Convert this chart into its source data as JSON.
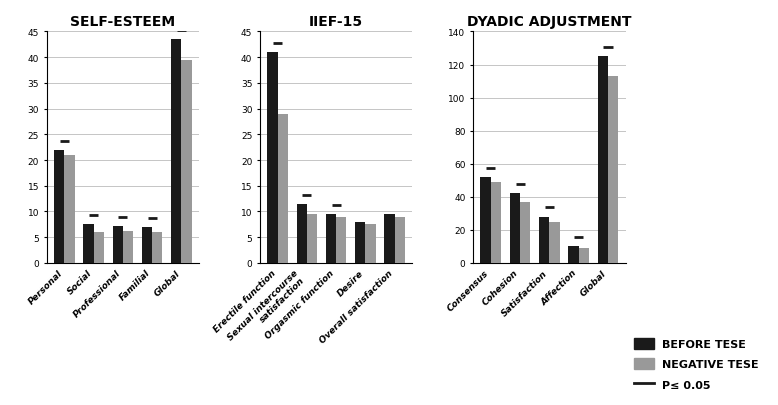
{
  "panels": [
    {
      "title": "SELF-ESTEEM",
      "categories": [
        "Personal",
        "Social",
        "Professional",
        "Familial",
        "Global"
      ],
      "before": [
        22,
        7.5,
        7.2,
        7.0,
        43.5
      ],
      "negative": [
        21,
        6.0,
        6.3,
        6.0,
        39.5
      ],
      "ylim": [
        0,
        45
      ],
      "yticks": [
        0,
        5,
        10,
        15,
        20,
        25,
        30,
        35,
        40,
        45
      ],
      "significance": [
        true,
        true,
        true,
        true,
        true
      ]
    },
    {
      "title": "IIEF-15",
      "categories": [
        "Erectile function",
        "Sexual intercourse\nsatisfaction",
        "Orgasmic function",
        "Desire",
        "Overall satisfaction"
      ],
      "before": [
        41,
        11.5,
        9.5,
        8.0,
        9.5
      ],
      "negative": [
        29,
        9.5,
        9.0,
        7.5,
        9.0
      ],
      "ylim": [
        0,
        45
      ],
      "yticks": [
        0,
        5,
        10,
        15,
        20,
        25,
        30,
        35,
        40,
        45
      ],
      "significance": [
        true,
        true,
        true,
        false,
        false
      ]
    },
    {
      "title": "DYADIC ADJUSTMENT",
      "categories": [
        "Consensus",
        "Cohesion",
        "Satisfaction",
        "Affection",
        "Global"
      ],
      "before": [
        52,
        42,
        28,
        10,
        125
      ],
      "negative": [
        49,
        37,
        25,
        9,
        113
      ],
      "ylim": [
        0,
        140
      ],
      "yticks": [
        0,
        20,
        40,
        60,
        80,
        100,
        120,
        140
      ],
      "significance": [
        true,
        true,
        true,
        true,
        true
      ]
    }
  ],
  "bar_width": 0.35,
  "before_color": "#1a1a1a",
  "negative_color": "#999999",
  "sig_color": "#1a1a1a",
  "legend_labels": [
    "BEFORE TESE",
    "NEGATIVE TESE",
    "P≤ 0.05"
  ],
  "bg_color": "#ffffff",
  "title_fontsize": 10,
  "tick_fontsize": 6.5,
  "label_fontsize": 7,
  "figsize": [
    7.78,
    4.06
  ],
  "dpi": 100
}
